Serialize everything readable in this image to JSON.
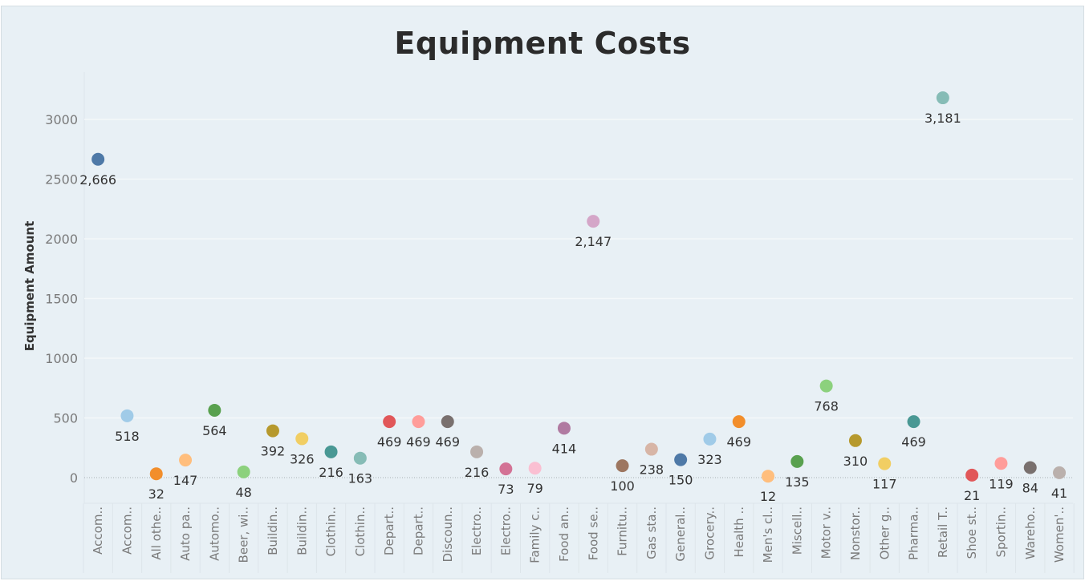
{
  "chart_data": {
    "type": "scatter",
    "title": "Equipment Costs",
    "ylabel": "Equipment Amount",
    "xlabel": "",
    "ylim": [
      -200,
      3300
    ],
    "yticks": [
      0,
      500,
      1000,
      1500,
      2000,
      2500,
      3000
    ],
    "grid": true,
    "categories": [
      "Accom..",
      "Accom..",
      "All othe..",
      "Auto pa..",
      "Automo..",
      "Beer, wi..",
      "Buildin..",
      "Buildin..",
      "Clothin..",
      "Clothin..",
      "Depart..",
      "Depart..",
      "Discoun..",
      "Electro..",
      "Electro..",
      "Family c..",
      "Food an..",
      "Food se..",
      "Furnitu..",
      "Gas sta..",
      "General..",
      "Grocery..",
      "Health ..",
      "Men's cl..",
      "Miscell..",
      "Motor v..",
      "Nonstor..",
      "Other g..",
      "Pharma..",
      "Retail T..",
      "Shoe st..",
      "Sportin..",
      "Wareho..",
      "Women'.."
    ],
    "values": [
      2666,
      518,
      32,
      147,
      564,
      48,
      392,
      326,
      216,
      163,
      469,
      469,
      469,
      216,
      73,
      79,
      414,
      2147,
      100,
      238,
      150,
      323,
      469,
      12,
      135,
      768,
      310,
      117,
      469,
      3181,
      21,
      119,
      84,
      41
    ],
    "labels": [
      "2,666",
      "518",
      "32",
      "147",
      "564",
      "48",
      "392",
      "326",
      "216",
      "163",
      "469",
      "469",
      "469",
      "216",
      "73",
      "79",
      "414",
      "2,147",
      "100",
      "238",
      "150",
      "323",
      "469",
      "12",
      "135",
      "768",
      "310",
      "117",
      "469",
      "3,181",
      "21",
      "119",
      "84",
      "41"
    ],
    "colors": [
      "#4e79a7",
      "#a0cbe8",
      "#f28e2b",
      "#ffbe7d",
      "#59a14f",
      "#8cd17d",
      "#b6992d",
      "#f1ce63",
      "#499894",
      "#86bcb6",
      "#e15759",
      "#ff9d9a",
      "#79706e",
      "#bab0ac",
      "#d37295",
      "#fabfd2",
      "#b07aa1",
      "#d4a6c8",
      "#9d7660",
      "#d7b5a6",
      "#4e79a7",
      "#a0cbe8",
      "#f28e2b",
      "#ffbe7d",
      "#59a14f",
      "#8cd17d",
      "#b6992d",
      "#f1ce63",
      "#499894",
      "#86bcb6",
      "#e15759",
      "#ff9d9a",
      "#79706e",
      "#bab0ac"
    ]
  }
}
